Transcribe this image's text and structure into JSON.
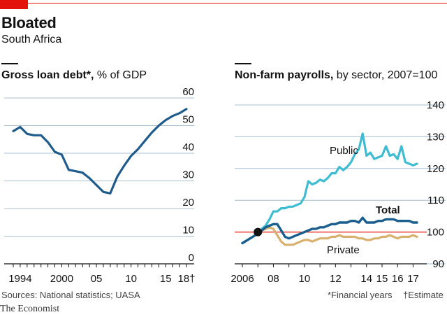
{
  "header": {
    "title": "Bloated",
    "subtitle": "South Africa"
  },
  "footer": {
    "source": "Sources: National statistics; UASA",
    "note_financial": "*Financial years",
    "note_estimate": "†Estimate",
    "brand": "The Economist"
  },
  "colors": {
    "accent_red": "#e3120b",
    "debt": "#1f5c8b",
    "public": "#3ebcd2",
    "total": "#1a5f8e",
    "private": "#d8b16e",
    "grid": "#a9bfcf",
    "ref_line": "#e3120b"
  },
  "panels": {
    "left": {
      "title_bold": "Gross loan debt*,",
      "title_rest": " % of GDP"
    },
    "right": {
      "title_bold": "Non-farm payrolls,",
      "title_rest": " by sector, 2007=100"
    }
  },
  "chart_data": [
    {
      "type": "line",
      "title": "Gross loan debt*, % of GDP",
      "xlabel": "",
      "ylabel": "",
      "ylim": [
        0,
        60
      ],
      "yticks": [
        "0",
        "10",
        "20",
        "30",
        "40",
        "50",
        "60"
      ],
      "xticks": [
        "1994",
        "2000",
        "05",
        "10",
        "15",
        "18†"
      ],
      "grid": true,
      "series": [
        {
          "x": [
            1993,
            1994,
            1995,
            1996,
            1997,
            1998,
            1999,
            2000,
            2001,
            2002,
            2003,
            2004,
            2005,
            2006,
            2007,
            2008,
            2009,
            2010,
            2011,
            2012,
            2013,
            2014,
            2015,
            2016,
            2017,
            2018
          ],
          "values": [
            48,
            49.5,
            47,
            46.5,
            46.5,
            44,
            40.5,
            39.5,
            34,
            33.5,
            33,
            31,
            28.5,
            26,
            25.5,
            31.5,
            35.5,
            39,
            41.5,
            44.5,
            47.5,
            50,
            52,
            53.5,
            54.5,
            56
          ]
        }
      ]
    },
    {
      "type": "line",
      "title": "Non-farm payrolls, by sector, 2007=100",
      "xlabel": "",
      "ylabel": "",
      "ylim": [
        90,
        140
      ],
      "yticks": [
        "90",
        "100",
        "110",
        "120",
        "130",
        "140"
      ],
      "xticks": [
        "2006",
        "08",
        "10",
        "12",
        "14",
        "15",
        "16",
        "17"
      ],
      "reference_line": 100,
      "grid": true,
      "marker": {
        "x": 2007.0,
        "y": 100
      },
      "series": [
        {
          "name": "Public",
          "x": [
            2006.0,
            2006.5,
            2007.0,
            2007.25,
            2007.5,
            2007.75,
            2008.0,
            2008.25,
            2008.5,
            2008.75,
            2009.0,
            2009.25,
            2009.5,
            2009.75,
            2010.0,
            2010.25,
            2010.5,
            2010.75,
            2011.0,
            2011.25,
            2011.5,
            2011.75,
            2012.0,
            2012.25,
            2012.5,
            2012.75,
            2013.0,
            2013.25,
            2013.5,
            2013.75,
            2014.0,
            2014.25,
            2014.5,
            2014.75,
            2015.0,
            2015.25,
            2015.5,
            2015.75,
            2016.0,
            2016.25,
            2016.5,
            2016.75,
            2017.0,
            2017.25
          ],
          "values": [
            96.5,
            98,
            99.5,
            101,
            102,
            104,
            106.5,
            106.5,
            107.5,
            107.5,
            108,
            108,
            108.5,
            109,
            111,
            116,
            115,
            115.5,
            116.5,
            116,
            117,
            118.5,
            118.5,
            120.5,
            119.5,
            120.5,
            122,
            124.5,
            126,
            131,
            124,
            125,
            123,
            123.5,
            124,
            127,
            124,
            124.5,
            123,
            127,
            122,
            121.5,
            121,
            121.5
          ]
        },
        {
          "name": "Total",
          "x": [
            2006.0,
            2006.5,
            2007.0,
            2007.25,
            2007.5,
            2007.75,
            2008.0,
            2008.25,
            2008.5,
            2008.75,
            2009.0,
            2009.25,
            2009.5,
            2009.75,
            2010.0,
            2010.25,
            2010.5,
            2010.75,
            2011.0,
            2011.25,
            2011.5,
            2011.75,
            2012.0,
            2012.25,
            2012.5,
            2012.75,
            2013.0,
            2013.25,
            2013.5,
            2013.75,
            2014.0,
            2014.25,
            2014.5,
            2014.75,
            2015.0,
            2015.25,
            2015.5,
            2015.75,
            2016.0,
            2016.25,
            2016.5,
            2016.75,
            2017.0,
            2017.25
          ],
          "values": [
            96.5,
            98,
            99.5,
            100.5,
            101.5,
            102,
            102.5,
            102.5,
            100.5,
            98.5,
            98,
            98.5,
            99,
            99.5,
            100,
            100.5,
            101,
            101,
            101.5,
            101.5,
            102,
            102.5,
            102.5,
            103,
            103,
            103,
            103.5,
            103.5,
            103,
            104.5,
            103,
            103,
            103,
            103.5,
            103.5,
            104,
            104,
            104,
            103.5,
            103.5,
            103.5,
            103.5,
            103,
            103
          ]
        },
        {
          "name": "Private",
          "x": [
            2006.0,
            2006.5,
            2007.0,
            2007.25,
            2007.5,
            2007.75,
            2008.0,
            2008.25,
            2008.5,
            2008.75,
            2009.0,
            2009.25,
            2009.5,
            2009.75,
            2010.0,
            2010.25,
            2010.5,
            2010.75,
            2011.0,
            2011.25,
            2011.5,
            2011.75,
            2012.0,
            2012.25,
            2012.5,
            2012.75,
            2013.0,
            2013.25,
            2013.5,
            2013.75,
            2014.0,
            2014.25,
            2014.5,
            2014.75,
            2015.0,
            2015.25,
            2015.5,
            2015.75,
            2016.0,
            2016.25,
            2016.5,
            2016.75,
            2017.0,
            2017.25
          ],
          "values": [
            96.5,
            98,
            99.5,
            100.5,
            101,
            101.5,
            101,
            99,
            97,
            96,
            96,
            96,
            96.5,
            97,
            97.5,
            97.5,
            97,
            97.5,
            98,
            98,
            98,
            98.5,
            98.5,
            99,
            98.5,
            98.5,
            98.5,
            98.5,
            98,
            98,
            97.5,
            97.5,
            98,
            98,
            98.5,
            98.5,
            99,
            98.5,
            98,
            98.5,
            98.5,
            98.5,
            99,
            98.5
          ]
        }
      ]
    }
  ]
}
